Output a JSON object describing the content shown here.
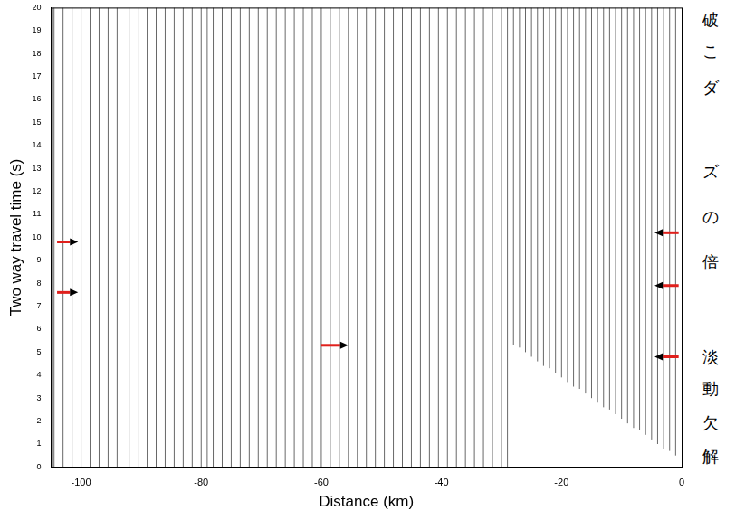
{
  "chart_data": {
    "type": "line",
    "x_label": "Distance (km)",
    "y_label": "Two way travel time (s)",
    "xlim": [
      -105,
      0
    ],
    "xticks": [
      -100,
      -80,
      -60,
      -40,
      -20,
      0
    ],
    "ylim": [
      0,
      20
    ],
    "yticks": [
      0,
      1,
      2,
      3,
      4,
      5,
      6,
      7,
      8,
      9,
      10,
      11,
      12,
      13,
      14,
      15,
      16,
      17,
      18,
      19,
      20
    ],
    "grid": false,
    "color": "#000000",
    "traces": {
      "x": [
        -104.5,
        -103,
        -101.5,
        -100,
        -98.5,
        -97,
        -95.5,
        -94,
        -92,
        -90.5,
        -89,
        -87.5,
        -86,
        -84.5,
        -83,
        -81.5,
        -80,
        -79,
        -78,
        -76.5,
        -75,
        -73.5,
        -72,
        -70.5,
        -69,
        -67.5,
        -66,
        -64.5,
        -63,
        -61.5,
        -60,
        -58.5,
        -57,
        -55.5,
        -54,
        -52.5,
        -51,
        -49.5,
        -48,
        -46.5,
        -45,
        -43.5,
        -42,
        -40.5,
        -39,
        -37.5,
        -36,
        -34.5,
        -33,
        -31.5,
        -30,
        -29,
        -28,
        -27,
        -26,
        -25,
        -24,
        -23,
        -22,
        -21,
        -20,
        -19,
        -18,
        -17,
        -16,
        -15,
        -14,
        -13,
        -12,
        -11,
        -10,
        -9,
        -8,
        -7,
        -6,
        -5,
        -4,
        -3,
        -2,
        -1
      ],
      "t_start": [
        0,
        0,
        0,
        0,
        0,
        0,
        0,
        0,
        0,
        0,
        0,
        0,
        0,
        0,
        0,
        0,
        0,
        0,
        0,
        0,
        0,
        0,
        0,
        0,
        0,
        0,
        0,
        0,
        0,
        0,
        0,
        0,
        0,
        0,
        0,
        0,
        0,
        0,
        0,
        0,
        0,
        0,
        0,
        0,
        0,
        0,
        0,
        0,
        0,
        0,
        0,
        0,
        5.3,
        5.2,
        5.0,
        4.8,
        4.6,
        4.4,
        4.3,
        4.1,
        3.9,
        3.7,
        3.5,
        3.4,
        3.2,
        3.0,
        2.8,
        2.6,
        2.5,
        2.3,
        2.1,
        1.9,
        1.7,
        1.6,
        1.4,
        1.2,
        1.0,
        0.8,
        0.7,
        0.5
      ],
      "t_end": 20
    },
    "arrows": [
      {
        "x_from": -104,
        "x_to": -100.5,
        "y": 9.8
      },
      {
        "x_from": -104,
        "x_to": -100.5,
        "y": 7.6
      },
      {
        "x_from": -60,
        "x_to": -55.5,
        "y": 5.3
      },
      {
        "x_from": -0.5,
        "x_to": -4.5,
        "y": 10.2
      },
      {
        "x_from": -0.5,
        "x_to": -4.5,
        "y": 7.9
      },
      {
        "x_from": -0.5,
        "x_to": -4.5,
        "y": 4.8
      }
    ],
    "side_text": [
      "破",
      "こ",
      "ダ",
      "ズ",
      "の",
      "倍",
      "淡",
      "動",
      "欠",
      "解"
    ]
  }
}
